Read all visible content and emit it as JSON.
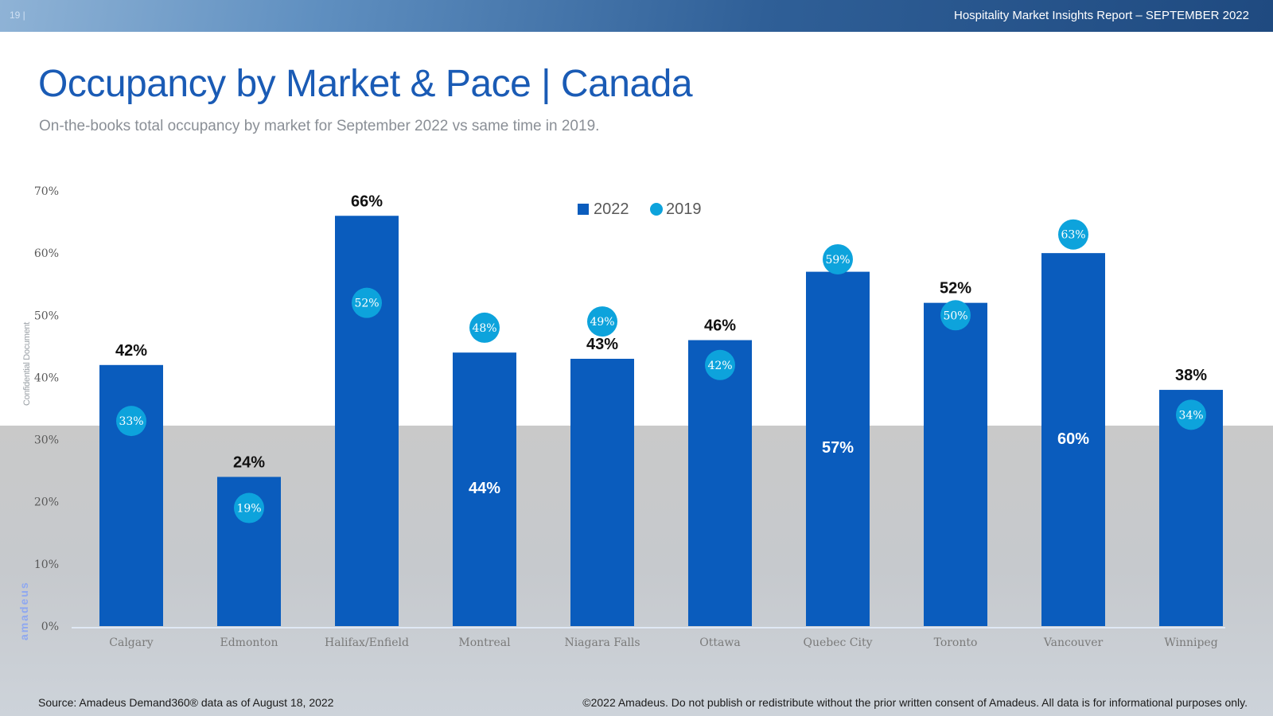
{
  "header": {
    "page_number": "19 |",
    "report_title": "Hospitality Market Insights Report – SEPTEMBER 2022"
  },
  "title": "Occupancy by Market & Pace | Canada",
  "subtitle": "On-the-books total occupancy by market for September 2022 vs same time in 2019.",
  "side_label": "Confidential Document",
  "brand": "amadeus",
  "footer": {
    "source": "Source: Amadeus Demand360® data as of August 18, 2022",
    "copyright": "©2022 Amadeus. Do not publish or redistribute without the prior written consent of Amadeus. All data is for informational purposes only."
  },
  "colors": {
    "bar_2022": "#0a5cbd",
    "dot_2019": "#0da3dc",
    "title": "#1a5bb5"
  },
  "chart_data": {
    "type": "bar",
    "categories": [
      "Calgary",
      "Edmonton",
      "Halifax/Enfield",
      "Montreal",
      "Niagara Falls",
      "Ottawa",
      "Quebec City",
      "Toronto",
      "Vancouver",
      "Winnipeg"
    ],
    "series": [
      {
        "name": "2022",
        "type": "bar",
        "values": [
          42,
          24,
          66,
          44,
          43,
          46,
          57,
          52,
          60,
          38
        ],
        "labels": [
          "42%",
          "24%",
          "66%",
          "44%",
          "43%",
          "46%",
          "57%",
          "52%",
          "60%",
          "38%"
        ]
      },
      {
        "name": "2019",
        "type": "marker",
        "values": [
          33,
          19,
          52,
          48,
          49,
          42,
          59,
          50,
          63,
          34
        ],
        "labels": [
          "33%",
          "19%",
          "52%",
          "48%",
          "49%",
          "42%",
          "59%",
          "50%",
          "63%",
          "34%"
        ]
      }
    ],
    "ylim": [
      0,
      70
    ],
    "yticks": [
      "0%",
      "10%",
      "20%",
      "30%",
      "40%",
      "50%",
      "60%",
      "70%"
    ],
    "legend_position": "top-center"
  }
}
